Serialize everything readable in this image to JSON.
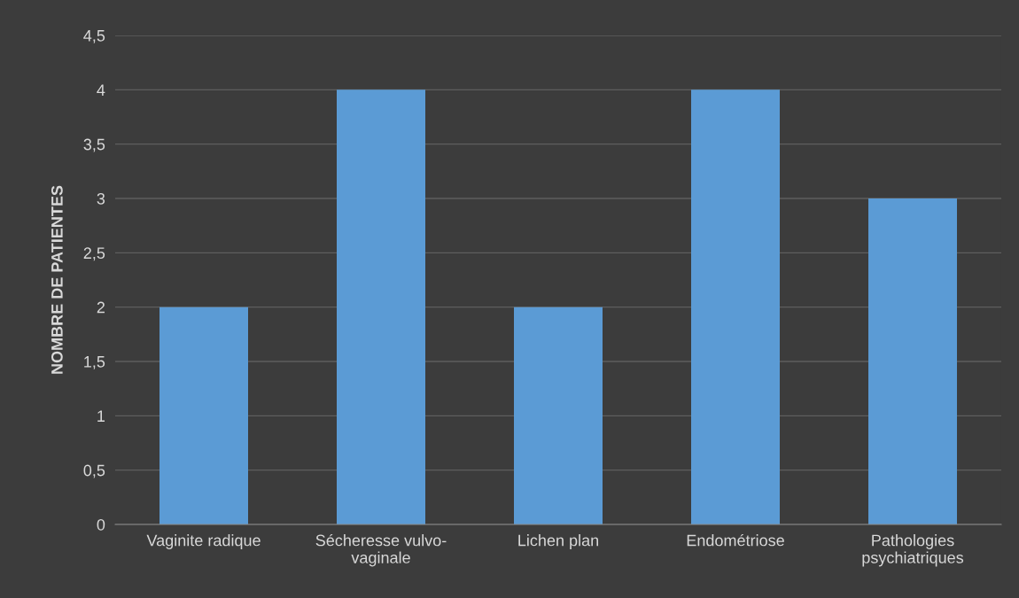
{
  "chart_data": {
    "type": "bar",
    "ylabel": "NOMBRE DE PATIENTES",
    "categories": [
      "Vaginite radique",
      "Sécheresse vulvo-vaginale",
      "Lichen plan",
      "Endométriose",
      "Pathologies psychiatriques"
    ],
    "values": [
      2,
      4,
      2,
      4,
      3
    ],
    "color": "#5b9bd5",
    "ylim": [
      0,
      4.5
    ],
    "yticks": [
      0,
      {
        "value": 0.5,
        "label": "0,5"
      },
      1,
      {
        "value": 1.5,
        "label": "1,5"
      },
      2,
      {
        "value": 2.5,
        "label": "2,5"
      },
      3,
      {
        "value": 3.5,
        "label": "3,5"
      },
      4,
      {
        "value": 4.5,
        "label": "4,5"
      }
    ],
    "grid": "y",
    "legend": false
  }
}
